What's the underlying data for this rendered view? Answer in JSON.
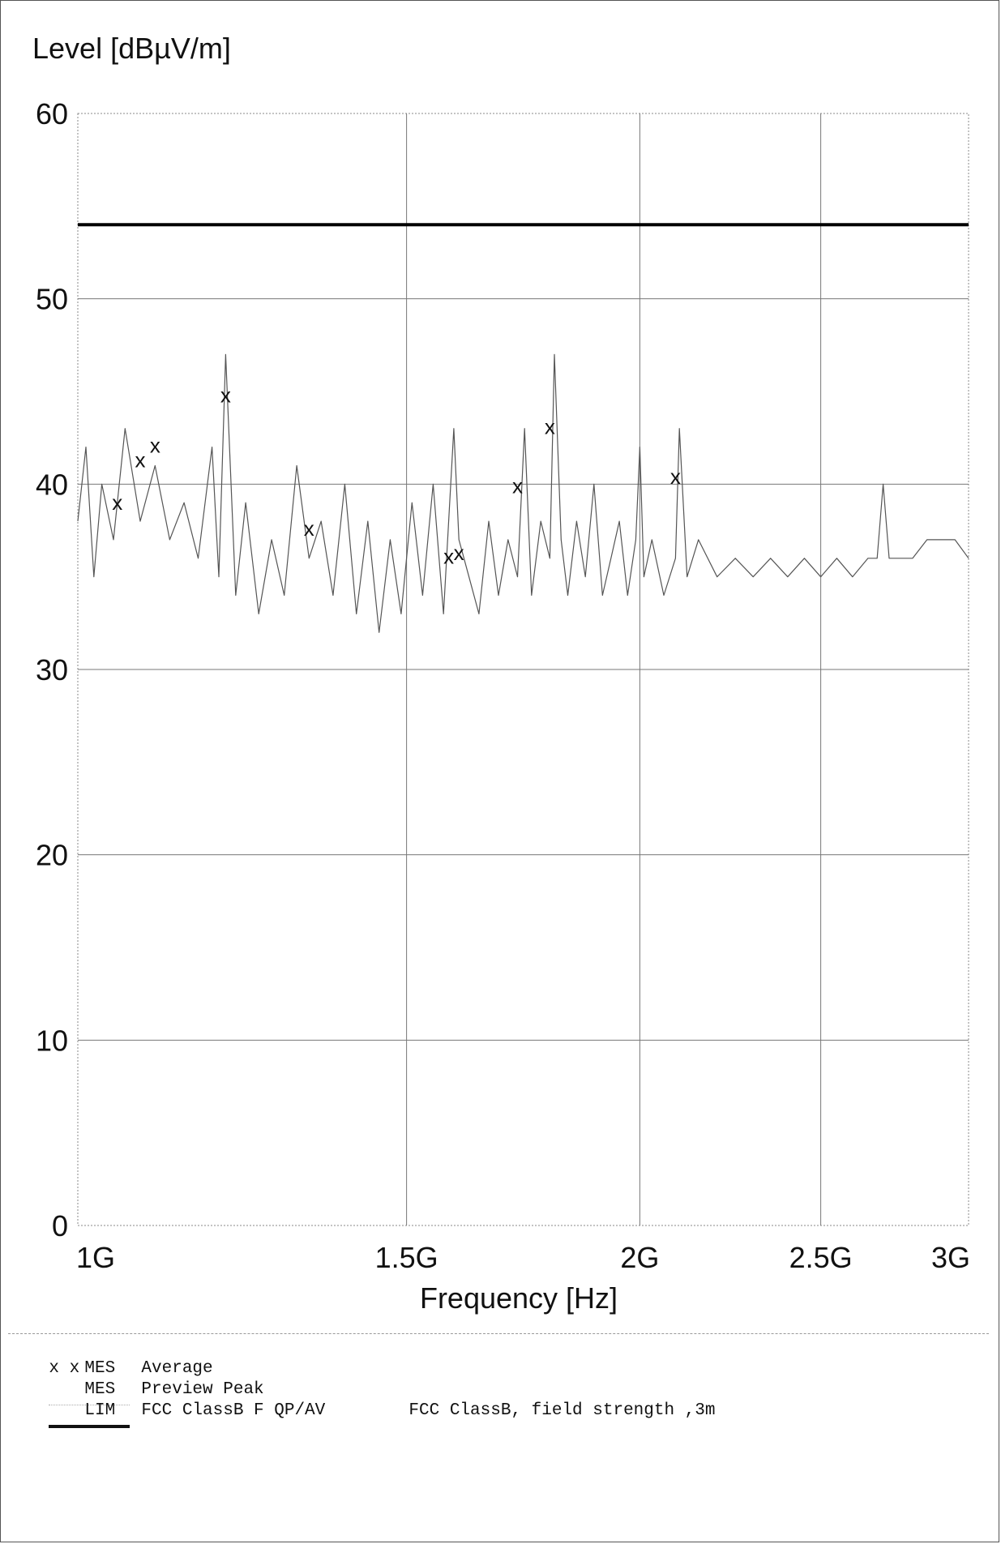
{
  "chart_data": {
    "type": "line",
    "ylabel": "Level [dBµV/m]",
    "xlabel": "Frequency [Hz]",
    "x_scale": "log",
    "xlim": [
      1000000000,
      3000000000
    ],
    "ylim": [
      0,
      60
    ],
    "y_ticks": [
      "0",
      "10",
      "20",
      "30",
      "40",
      "50",
      "60"
    ],
    "x_ticks": [
      {
        "value": 1000000000,
        "label": "1G"
      },
      {
        "value": 1500000000,
        "label": "1.5G"
      },
      {
        "value": 2000000000,
        "label": "2G"
      },
      {
        "value": 2500000000,
        "label": "2.5G"
      },
      {
        "value": 3000000000,
        "label": "3G"
      }
    ],
    "grid": true,
    "series": [
      {
        "name": "Preview Peak",
        "color": "#555555",
        "x": [
          1000000000,
          1010000000,
          1020000000,
          1030000000,
          1045000000,
          1060000000,
          1080000000,
          1100000000,
          1120000000,
          1140000000,
          1160000000,
          1180000000,
          1190000000,
          1200000000,
          1215000000,
          1230000000,
          1250000000,
          1270000000,
          1290000000,
          1310000000,
          1330000000,
          1350000000,
          1370000000,
          1390000000,
          1410000000,
          1430000000,
          1450000000,
          1470000000,
          1490000000,
          1510000000,
          1530000000,
          1550000000,
          1570000000,
          1590000000,
          1600000000,
          1620000000,
          1640000000,
          1660000000,
          1680000000,
          1700000000,
          1720000000,
          1735000000,
          1750000000,
          1770000000,
          1790000000,
          1800000000,
          1815000000,
          1830000000,
          1850000000,
          1870000000,
          1890000000,
          1910000000,
          1930000000,
          1950000000,
          1970000000,
          1990000000,
          2000000000,
          2010000000,
          2030000000,
          2060000000,
          2090000000,
          2100000000,
          2120000000,
          2150000000,
          2200000000,
          2250000000,
          2300000000,
          2350000000,
          2400000000,
          2450000000,
          2500000000,
          2550000000,
          2600000000,
          2650000000,
          2680000000,
          2700000000,
          2720000000,
          2750000000,
          2800000000,
          2850000000,
          2900000000,
          2950000000,
          3000000000
        ],
        "values": [
          38,
          42,
          35,
          40,
          37,
          43,
          38,
          41,
          37,
          39,
          36,
          42,
          35,
          47,
          34,
          39,
          33,
          37,
          34,
          41,
          36,
          38,
          34,
          40,
          33,
          38,
          32,
          37,
          33,
          39,
          34,
          40,
          33,
          43,
          37,
          35,
          33,
          38,
          34,
          37,
          35,
          43,
          34,
          38,
          36,
          47,
          37,
          34,
          38,
          35,
          40,
          34,
          36,
          38,
          34,
          37,
          42,
          35,
          37,
          34,
          36,
          43,
          35,
          37,
          35,
          36,
          35,
          36,
          35,
          36,
          35,
          36,
          35,
          36,
          36,
          40,
          36,
          36,
          36,
          37,
          37,
          37,
          36
        ]
      },
      {
        "name": "Average",
        "marker": "x",
        "x": [
          1050000000,
          1080000000,
          1100000000,
          1200000000,
          1330000000,
          1580000000,
          1600000000,
          1720000000,
          1790000000,
          2090000000
        ],
        "values": [
          39,
          41.3,
          42.1,
          44.8,
          37.6,
          36.1,
          36.3,
          39.9,
          43.1,
          40.4
        ]
      }
    ],
    "limit_line": {
      "name": "FCC ClassB F QP/AV",
      "value": 54,
      "color": "#000000"
    }
  },
  "legend": {
    "rows": [
      {
        "symbol": "x x",
        "code": "MES",
        "desc": "Average",
        "note": ""
      },
      {
        "symbol": "",
        "code": "MES",
        "desc": "Preview Peak",
        "note": ""
      },
      {
        "symbol": "",
        "code": "LIM",
        "desc": "FCC ClassB F QP/AV",
        "note": "FCC ClassB, field strength ,3m"
      }
    ]
  }
}
